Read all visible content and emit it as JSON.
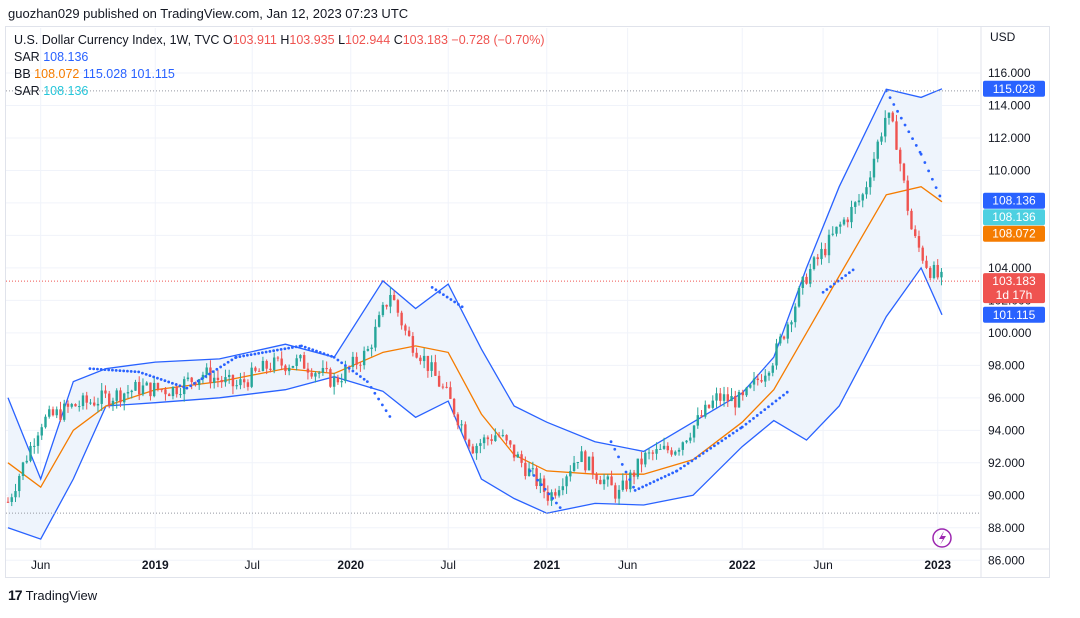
{
  "header": {
    "publisher": "guozhan029 published on TradingView.com, Jan 12, 2023 07:23 UTC"
  },
  "legend": {
    "title": "U.S. Dollar Currency Index, 1W, TVC",
    "o_label": "O",
    "o_val": "103.911",
    "h_label": "H",
    "h_val": "103.935",
    "l_label": "L",
    "l_val": "102.944",
    "c_label": "C",
    "c_val": "103.183",
    "change": "−0.728 (−0.70%)",
    "sar1_label": "SAR",
    "sar1_val": "108.136",
    "bb_label": "BB",
    "bb_basis": "108.072",
    "bb_upper": "115.028",
    "bb_lower": "101.115",
    "sar2_label": "SAR",
    "sar2_val": "108.136"
  },
  "footer": {
    "brand": "TradingView"
  },
  "colors": {
    "up": "#26a69a",
    "down": "#ef5350",
    "bb_band": "#2962ff",
    "bb_basis": "#f57c00",
    "sar": "#2962ff",
    "fill": "#eef4fc",
    "price_line": "#ef5350",
    "sar2": "#4dd0e1",
    "lightning": "#9c27b0"
  },
  "chart_data": {
    "type": "candlestick",
    "title": "U.S. Dollar Currency Index, 1W, TVC",
    "currency": "USD",
    "ylim": [
      84.6,
      117.6
    ],
    "y_ticks": [
      "86.000",
      "88.000",
      "90.000",
      "92.000",
      "94.000",
      "96.000",
      "98.000",
      "100.000",
      "102.000",
      "104.000",
      "106.000",
      "108.000",
      "110.000",
      "112.000",
      "114.000",
      "116.000"
    ],
    "x_tick_labels": [
      {
        "label": "Jun",
        "date": "2018-06-01",
        "bold": false
      },
      {
        "label": "2019",
        "date": "2019-01-01",
        "bold": true
      },
      {
        "label": "Jul",
        "date": "2019-07-01",
        "bold": false
      },
      {
        "label": "2020",
        "date": "2020-01-01",
        "bold": true
      },
      {
        "label": "Jul",
        "date": "2020-07-01",
        "bold": false
      },
      {
        "label": "2021",
        "date": "2021-01-01",
        "bold": true
      },
      {
        "label": "Jun",
        "date": "2021-06-01",
        "bold": false
      },
      {
        "label": "2022",
        "date": "2022-01-01",
        "bold": true
      },
      {
        "label": "Jun",
        "date": "2022-06-01",
        "bold": false
      },
      {
        "label": "2023",
        "date": "2023-01-01",
        "bold": true
      }
    ],
    "price_series": {
      "name": "U.S. Dollar Currency Index",
      "points": [
        [
          "2018-04-01",
          89.6
        ],
        [
          "2018-06-01",
          94.5
        ],
        [
          "2018-08-01",
          95.5
        ],
        [
          "2018-10-01",
          96.0
        ],
        [
          "2018-12-01",
          96.6
        ],
        [
          "2019-02-01",
          96.5
        ],
        [
          "2019-04-01",
          97.5
        ],
        [
          "2019-06-01",
          96.7
        ],
        [
          "2019-08-01",
          98.0
        ],
        [
          "2019-10-01",
          98.2
        ],
        [
          "2019-12-01",
          97.0
        ],
        [
          "2020-02-01",
          98.8
        ],
        [
          "2020-03-15",
          102.5
        ],
        [
          "2020-04-15",
          99.8
        ],
        [
          "2020-05-15",
          98.5
        ],
        [
          "2020-07-01",
          96.0
        ],
        [
          "2020-08-15",
          93.0
        ],
        [
          "2020-10-01",
          93.8
        ],
        [
          "2020-11-15",
          92.0
        ],
        [
          "2021-01-06",
          89.9
        ],
        [
          "2021-03-01",
          92.5
        ],
        [
          "2021-05-15",
          90.0
        ],
        [
          "2021-07-01",
          92.3
        ],
        [
          "2021-09-01",
          93.0
        ],
        [
          "2021-11-15",
          96.0
        ],
        [
          "2022-01-01",
          95.8
        ],
        [
          "2022-03-01",
          98.5
        ],
        [
          "2022-05-01",
          103.5
        ],
        [
          "2022-07-01",
          106.5
        ],
        [
          "2022-08-15",
          108.5
        ],
        [
          "2022-09-27",
          113.5
        ],
        [
          "2022-10-15",
          112.0
        ],
        [
          "2022-11-15",
          106.0
        ],
        [
          "2022-12-15",
          104.0
        ],
        [
          "2023-01-09",
          103.183
        ]
      ]
    },
    "bb_upper": [
      [
        "2018-04-01",
        96.0
      ],
      [
        "2018-06-01",
        91.0
      ],
      [
        "2018-08-01",
        97.0
      ],
      [
        "2018-10-01",
        97.8
      ],
      [
        "2019-01-01",
        98.2
      ],
      [
        "2019-05-01",
        98.4
      ],
      [
        "2019-09-01",
        99.3
      ],
      [
        "2019-12-01",
        98.5
      ],
      [
        "2020-03-01",
        103.2
      ],
      [
        "2020-05-01",
        101.5
      ],
      [
        "2020-07-01",
        103.0
      ],
      [
        "2020-09-01",
        99.0
      ],
      [
        "2020-11-01",
        95.5
      ],
      [
        "2021-01-01",
        94.5
      ],
      [
        "2021-04-01",
        93.3
      ],
      [
        "2021-07-01",
        92.7
      ],
      [
        "2021-10-01",
        94.5
      ],
      [
        "2022-01-01",
        96.3
      ],
      [
        "2022-03-01",
        98.5
      ],
      [
        "2022-05-01",
        104.0
      ],
      [
        "2022-07-01",
        109.0
      ],
      [
        "2022-09-27",
        115.0
      ],
      [
        "2022-12-01",
        114.5
      ],
      [
        "2023-01-09",
        115.028
      ]
    ],
    "bb_lower": [
      [
        "2018-04-01",
        88.0
      ],
      [
        "2018-06-01",
        87.3
      ],
      [
        "2018-08-01",
        91.0
      ],
      [
        "2018-10-01",
        95.5
      ],
      [
        "2019-01-01",
        95.7
      ],
      [
        "2019-05-01",
        96.0
      ],
      [
        "2019-09-01",
        96.5
      ],
      [
        "2019-12-01",
        97.3
      ],
      [
        "2020-03-01",
        96.4
      ],
      [
        "2020-05-01",
        94.8
      ],
      [
        "2020-07-01",
        95.8
      ],
      [
        "2020-09-01",
        91.0
      ],
      [
        "2020-11-01",
        89.8
      ],
      [
        "2021-01-01",
        88.9
      ],
      [
        "2021-04-01",
        89.5
      ],
      [
        "2021-07-01",
        89.4
      ],
      [
        "2021-10-01",
        90.0
      ],
      [
        "2022-01-01",
        93.0
      ],
      [
        "2022-03-01",
        94.6
      ],
      [
        "2022-05-01",
        93.4
      ],
      [
        "2022-07-01",
        95.5
      ],
      [
        "2022-09-27",
        101.0
      ],
      [
        "2022-12-01",
        104.0
      ],
      [
        "2023-01-09",
        101.115
      ]
    ],
    "bb_basis": [
      [
        "2018-04-01",
        92.0
      ],
      [
        "2018-06-01",
        90.5
      ],
      [
        "2018-08-01",
        94.0
      ],
      [
        "2018-10-01",
        95.5
      ],
      [
        "2019-01-01",
        96.5
      ],
      [
        "2019-05-01",
        97.0
      ],
      [
        "2019-09-01",
        97.8
      ],
      [
        "2019-12-01",
        97.5
      ],
      [
        "2020-03-01",
        98.8
      ],
      [
        "2020-05-01",
        99.2
      ],
      [
        "2020-07-01",
        98.8
      ],
      [
        "2020-09-01",
        95.0
      ],
      [
        "2020-11-01",
        92.5
      ],
      [
        "2021-01-01",
        91.5
      ],
      [
        "2021-04-01",
        91.3
      ],
      [
        "2021-07-01",
        91.3
      ],
      [
        "2021-10-01",
        92.2
      ],
      [
        "2022-01-01",
        94.5
      ],
      [
        "2022-03-01",
        96.5
      ],
      [
        "2022-05-01",
        100.0
      ],
      [
        "2022-07-01",
        103.5
      ],
      [
        "2022-09-27",
        108.5
      ],
      [
        "2022-12-01",
        109.0
      ],
      [
        "2023-01-09",
        108.072
      ]
    ],
    "sar_points": [
      [
        "2018-04-01",
        88.3
      ],
      [
        "2018-06-01",
        92.5
      ],
      [
        "2018-09-01",
        97.8
      ],
      [
        "2018-12-01",
        97.6
      ],
      [
        "2019-03-01",
        96.6
      ],
      [
        "2019-06-01",
        98.5
      ],
      [
        "2019-10-01",
        99.2
      ],
      [
        "2019-12-01",
        98.5
      ],
      [
        "2020-02-01",
        97.0
      ],
      [
        "2020-03-15",
        94.8
      ],
      [
        "2020-06-01",
        102.8
      ],
      [
        "2020-08-01",
        101.5
      ],
      [
        "2020-10-01",
        96.2
      ],
      [
        "2020-12-01",
        91.5
      ],
      [
        "2021-02-01",
        89.0
      ],
      [
        "2021-05-01",
        93.3
      ],
      [
        "2021-06-15",
        90.3
      ],
      [
        "2021-09-01",
        91.5
      ],
      [
        "2022-01-01",
        94.2
      ],
      [
        "2022-04-01",
        96.5
      ],
      [
        "2022-06-01",
        102.5
      ],
      [
        "2022-08-01",
        104.0
      ],
      [
        "2022-09-27",
        114.9
      ],
      [
        "2022-12-01",
        111.0
      ],
      [
        "2023-01-09",
        108.136
      ]
    ],
    "last_price": 103.183,
    "price_label": "103.183",
    "countdown": "1d 17h",
    "price_axis_labels": [
      {
        "value": 115.028,
        "text": "115.028",
        "color": "#2962ff"
      },
      {
        "value": 108.136,
        "text": "108.136",
        "color": "#2962ff"
      },
      {
        "value": 108.136,
        "text": "108.136",
        "color": "#4dd0e1"
      },
      {
        "value": 108.072,
        "text": "108.072",
        "color": "#f57c00"
      },
      {
        "value": 101.115,
        "text": "101.115",
        "color": "#2962ff"
      }
    ],
    "horizontal_lines": [
      114.9,
      88.9
    ]
  }
}
